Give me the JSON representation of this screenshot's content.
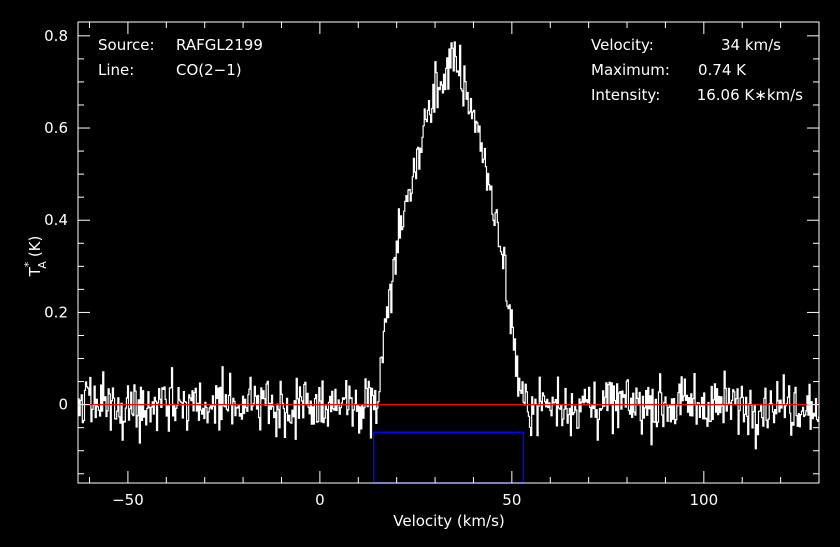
{
  "chart_data": {
    "type": "line",
    "xlabel": "Velocity (km/s)",
    "ylabel": "T*A (K)",
    "ylabel_main": "T",
    "ylabel_sup": "*",
    "ylabel_sub": "A",
    "ylabel_unit": "(K)",
    "xlim": [
      -63,
      130
    ],
    "ylim": [
      -0.17,
      0.83
    ],
    "x_ticks": [
      -50,
      0,
      50,
      100
    ],
    "x_tick_labels": [
      "−50",
      "0",
      "50",
      "100"
    ],
    "y_ticks": [
      0,
      0.2,
      0.4,
      0.6,
      0.8
    ],
    "y_tick_labels": [
      "0",
      "0.2",
      "0.4",
      "0.6",
      "0.8"
    ],
    "grid": false,
    "colors": {
      "background": "#000000",
      "spectrum": "#ffffff",
      "baseline": "#ff0000",
      "window": "#0000ff"
    },
    "baseline_y": 0,
    "integration_window": {
      "x": [
        14,
        53
      ],
      "y_top": -0.06
    },
    "profile": {
      "center": 34,
      "peak": 0.74,
      "half_width": 19,
      "noise_rms": 0.03,
      "envelope": [
        [
          14,
          -0.03
        ],
        [
          16,
          0.08
        ],
        [
          18,
          0.22
        ],
        [
          20,
          0.34
        ],
        [
          22,
          0.42
        ],
        [
          24,
          0.49
        ],
        [
          26,
          0.56
        ],
        [
          28,
          0.63
        ],
        [
          30,
          0.68
        ],
        [
          32,
          0.71
        ],
        [
          34,
          0.74
        ],
        [
          36,
          0.72
        ],
        [
          38,
          0.68
        ],
        [
          40,
          0.63
        ],
        [
          42,
          0.56
        ],
        [
          44,
          0.48
        ],
        [
          46,
          0.39
        ],
        [
          48,
          0.29
        ],
        [
          50,
          0.16
        ],
        [
          52,
          0.03
        ],
        [
          53,
          -0.02
        ]
      ]
    }
  },
  "info": {
    "source_label": "Source:",
    "source_value": "RAFGL2199",
    "line_label": "Line:",
    "line_value": "CO(2−1)",
    "velocity_label": "Velocity:",
    "velocity_value": "34 km/s",
    "maximum_label": "Maximum:",
    "maximum_value": "0.74 K",
    "intensity_label": "Intensity:",
    "intensity_value": "16.06 K∗km/s"
  }
}
